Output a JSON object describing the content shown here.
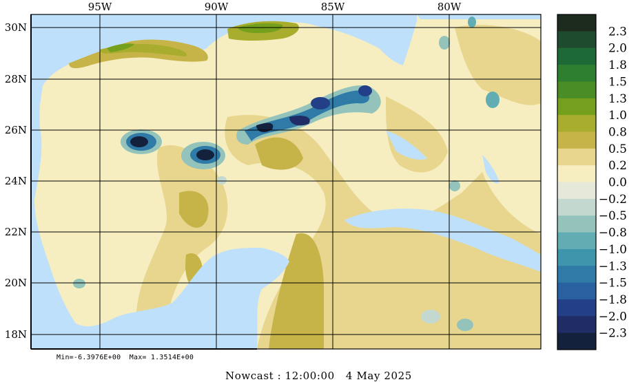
{
  "map": {
    "lon_ticks": [
      "95W",
      "90W",
      "85W",
      "80W"
    ],
    "lat_ticks": [
      "30N",
      "28N",
      "26N",
      "24N",
      "22N",
      "20N",
      "18N"
    ],
    "extent": {
      "lon_min": -98.0,
      "lon_max": -76.0,
      "lat_min": 17.5,
      "lat_max": 30.5
    }
  },
  "colorbar": {
    "labels": [
      "2.3",
      "2.0",
      "1.8",
      "1.5",
      "1.3",
      "1.0",
      "0.8",
      "0.5",
      "0.2",
      "0.0",
      "−0.2",
      "−0.5",
      "−0.8",
      "−1.0",
      "−1.3",
      "−1.5",
      "−1.8",
      "−2.0",
      "−2.3"
    ],
    "colors": [
      "#1d2a1e",
      "#1e4a2e",
      "#1d6a36",
      "#2e7f30",
      "#4a8c25",
      "#74a01e",
      "#a8ad2e",
      "#c6b449",
      "#e8d68e",
      "#f6eec0",
      "#e6e9da",
      "#c3d9d0",
      "#94c3bc",
      "#62adb3",
      "#3f95ab",
      "#2f7aa6",
      "#2860a0",
      "#223f88",
      "#1f2c66",
      "#14213d"
    ]
  },
  "stats": {
    "text": "Min=-6.3976E+00  Max= 1.3514E+00"
  },
  "footer": {
    "text": "Nowcast : 12:00:00   4 May 2025"
  },
  "palette": {
    "ocean": "#bfe0fa",
    "background": "#ffffff"
  }
}
